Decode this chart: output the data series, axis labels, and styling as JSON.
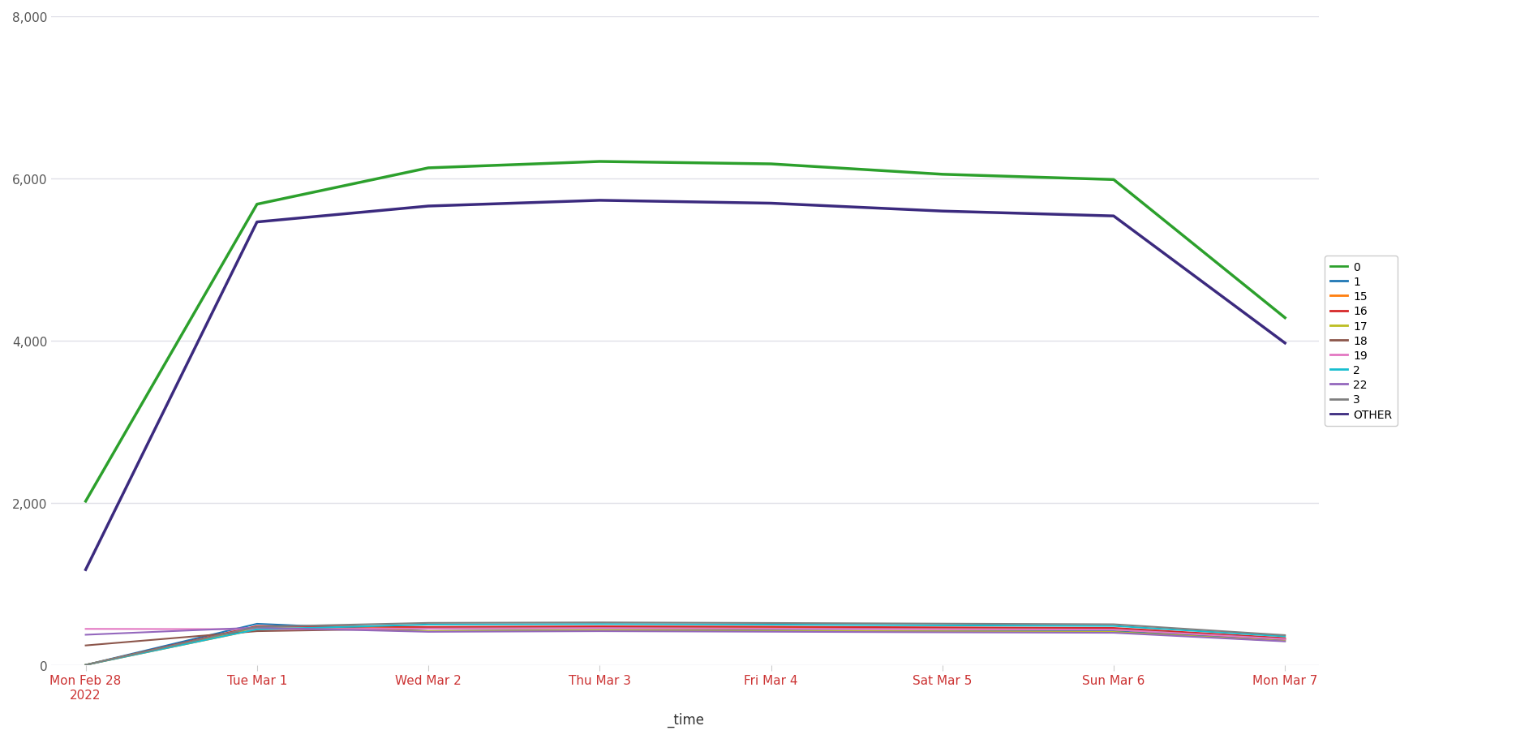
{
  "title": "",
  "xlabel": "_time",
  "ylabel": "",
  "x_labels": [
    "Mon Feb 28\n2022",
    "Tue Mar 1",
    "Wed Mar 2",
    "Thu Mar 3",
    "Fri Mar 4",
    "Sat Mar 5",
    "Sun Mar 6",
    "Mon Mar 7"
  ],
  "x_positions": [
    0,
    1,
    2,
    3,
    4,
    5,
    6,
    7
  ],
  "ylim": [
    0,
    8000
  ],
  "yticks": [
    0,
    2000,
    4000,
    6000,
    8000
  ],
  "series": {
    "0": [
      2019,
      5682,
      6130,
      6209,
      6179,
      6051,
      5986,
      4282
    ],
    "1": [
      0,
      507,
      417,
      430,
      425,
      415,
      415,
      310
    ],
    "15": [
      0,
      438,
      458,
      461,
      458,
      452,
      445,
      320
    ],
    "16": [
      0,
      479,
      468,
      476,
      471,
      463,
      456,
      331
    ],
    "17": [
      0,
      462,
      417,
      426,
      420,
      413,
      406,
      295
    ],
    "18": [
      240,
      416,
      450,
      455,
      448,
      443,
      437,
      320
    ],
    "19": [
      444,
      440,
      448,
      454,
      447,
      441,
      435,
      318
    ],
    "2": [
      0,
      439,
      498,
      504,
      497,
      488,
      481,
      352
    ],
    "22": [
      372,
      460,
      408,
      416,
      409,
      402,
      396,
      290
    ],
    "3": [
      0,
      470,
      518,
      524,
      517,
      509,
      501,
      367
    ],
    "OTHER": [
      1175,
      5463,
      5659,
      5730,
      5694,
      5597,
      5537,
      3970
    ]
  },
  "colors": {
    "0": "#2ca02c",
    "1": "#1f77b4",
    "15": "#ff7f0e",
    "16": "#d62728",
    "17": "#bcbd22",
    "18": "#8c564b",
    "19": "#e377c2",
    "2": "#17becf",
    "22": "#9467bd",
    "3": "#7f7f7f",
    "OTHER": "#3b2a7e"
  },
  "background_color": "#ffffff",
  "grid_color": "#e0e0e8",
  "tick_label_color": "#555555",
  "x_tick_colors": [
    "#cc3333",
    "#cc3333",
    "#cc3333",
    "#cc3333",
    "#cc3333",
    "#cc3333",
    "#cc3333",
    "#cc3333"
  ]
}
